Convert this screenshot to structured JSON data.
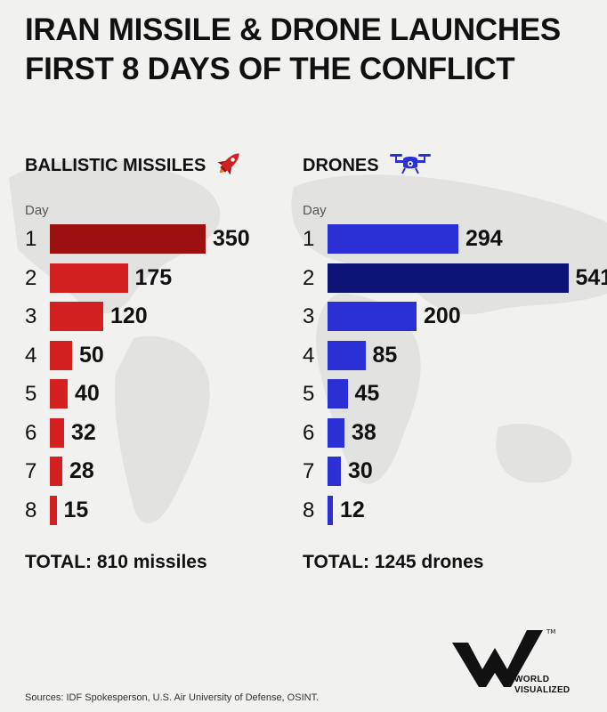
{
  "title": {
    "line1": "IRAN MISSILE & DRONE LAUNCHES",
    "line2": "FIRST 8 DAYS OF THE CONFLICT"
  },
  "chart_data": [
    {
      "type": "bar",
      "orientation": "horizontal",
      "title": "BALLISTIC MISSILES",
      "ylabel": "Day",
      "categories": [
        "1",
        "2",
        "3",
        "4",
        "5",
        "6",
        "7",
        "8"
      ],
      "values": [
        350,
        175,
        120,
        50,
        40,
        32,
        28,
        15
      ],
      "highlight_index": 0,
      "colors": {
        "bar": "#d42020",
        "highlight": "#9c1010"
      },
      "icon": "rocket-icon",
      "total_label": "TOTAL: 810 missiles"
    },
    {
      "type": "bar",
      "orientation": "horizontal",
      "title": "DRONES",
      "ylabel": "Day",
      "categories": [
        "1",
        "2",
        "3",
        "4",
        "5",
        "6",
        "7",
        "8"
      ],
      "values": [
        294,
        541,
        200,
        85,
        45,
        38,
        30,
        12
      ],
      "highlight_index": 1,
      "colors": {
        "bar": "#2b2fd6",
        "highlight": "#0c1478"
      },
      "icon": "drone-icon",
      "total_label": "TOTAL: 1245 drones"
    }
  ],
  "brand": {
    "logo_icon": "world-visualized-logo-icon",
    "name_line1": "WORLD",
    "name_line2": "VISUALIZED"
  },
  "sources": "Sources: IDF Spokesperson, U.S. Air University of Defense, OSINT."
}
